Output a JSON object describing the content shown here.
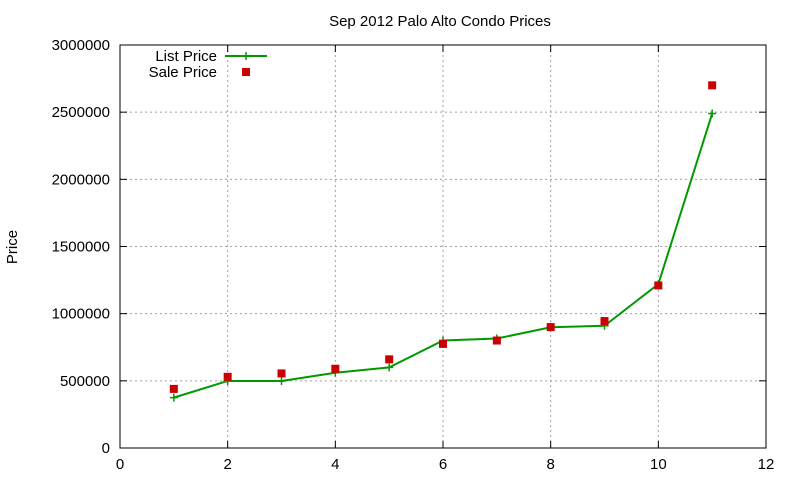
{
  "chart_data": {
    "type": "line",
    "title": "Sep 2012 Palo Alto Condo Prices",
    "xlabel": "",
    "ylabel": "Price",
    "xlim": [
      0,
      12
    ],
    "ylim": [
      0,
      3000000
    ],
    "x_ticks": [
      "0",
      "2",
      "4",
      "6",
      "8",
      "10",
      "12"
    ],
    "y_ticks": [
      "0",
      "500000",
      "1000000",
      "1500000",
      "2000000",
      "2500000",
      "3000000"
    ],
    "grid": true,
    "legend_position": "top-left",
    "series": [
      {
        "name": "List Price",
        "style": "line+plus",
        "color": "#009900",
        "x": [
          1,
          2,
          3,
          4,
          5,
          6,
          7,
          8,
          9,
          10,
          11
        ],
        "y": [
          375000,
          499000,
          499000,
          560000,
          600000,
          800000,
          815000,
          899000,
          910000,
          1220000,
          2490000
        ]
      },
      {
        "name": "Sale Price",
        "style": "square",
        "color": "#cc0000",
        "x": [
          1,
          2,
          3,
          4,
          5,
          6,
          7,
          8,
          9,
          10,
          11
        ],
        "y": [
          440000,
          530000,
          555000,
          590000,
          660000,
          775000,
          800000,
          900000,
          945000,
          1210000,
          2700000
        ]
      }
    ]
  }
}
